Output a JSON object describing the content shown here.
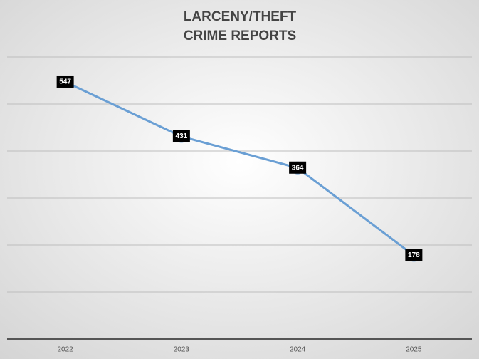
{
  "chart_data": {
    "type": "line",
    "title": [
      "LARCENY/THEFT",
      "CRIME REPORTS"
    ],
    "categories": [
      "2022",
      "2023",
      "2024",
      "2025"
    ],
    "series": [
      {
        "color": "#6a9fd4",
        "values": [
          547,
          431,
          364,
          178
        ]
      }
    ],
    "ylim": [
      0,
      700
    ],
    "yticks": [
      0,
      100,
      200,
      300,
      400,
      500,
      600
    ],
    "grid": true
  }
}
